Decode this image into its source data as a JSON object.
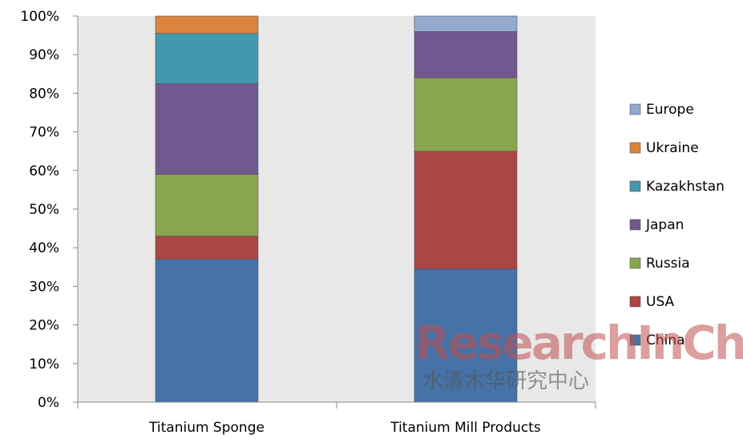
{
  "chart_data": {
    "type": "bar",
    "stacked": true,
    "percent": true,
    "categories": [
      "Titanium Sponge",
      "Titanium Mill Products"
    ],
    "series": [
      {
        "name": "China",
        "color": "#4572A7",
        "values": [
          37,
          34.5
        ]
      },
      {
        "name": "USA",
        "color": "#AA4643",
        "values": [
          6,
          30.5
        ]
      },
      {
        "name": "Russia",
        "color": "#89A54E",
        "values": [
          16,
          19
        ]
      },
      {
        "name": "Japan",
        "color": "#71588F",
        "values": [
          23.5,
          12
        ]
      },
      {
        "name": "Kazakhstan",
        "color": "#4198AF",
        "values": [
          13,
          0
        ]
      },
      {
        "name": "Ukraine",
        "color": "#DB843D",
        "values": [
          4.5,
          0
        ]
      },
      {
        "name": "Europe",
        "color": "#93A9CF",
        "values": [
          0,
          4
        ]
      }
    ],
    "yticks": [
      "0%",
      "10%",
      "20%",
      "30%",
      "40%",
      "50%",
      "60%",
      "70%",
      "80%",
      "90%",
      "100%"
    ],
    "ylim": [
      0,
      100
    ],
    "grid": false,
    "plot_background": "#E8E8E8",
    "legend_position": "right",
    "legend_order": [
      "Europe",
      "Ukraine",
      "Kazakhstan",
      "Japan",
      "Russia",
      "USA",
      "China"
    ]
  },
  "watermark": {
    "line1": "ResearchInChina",
    "line2": "水清木华研究中心"
  }
}
